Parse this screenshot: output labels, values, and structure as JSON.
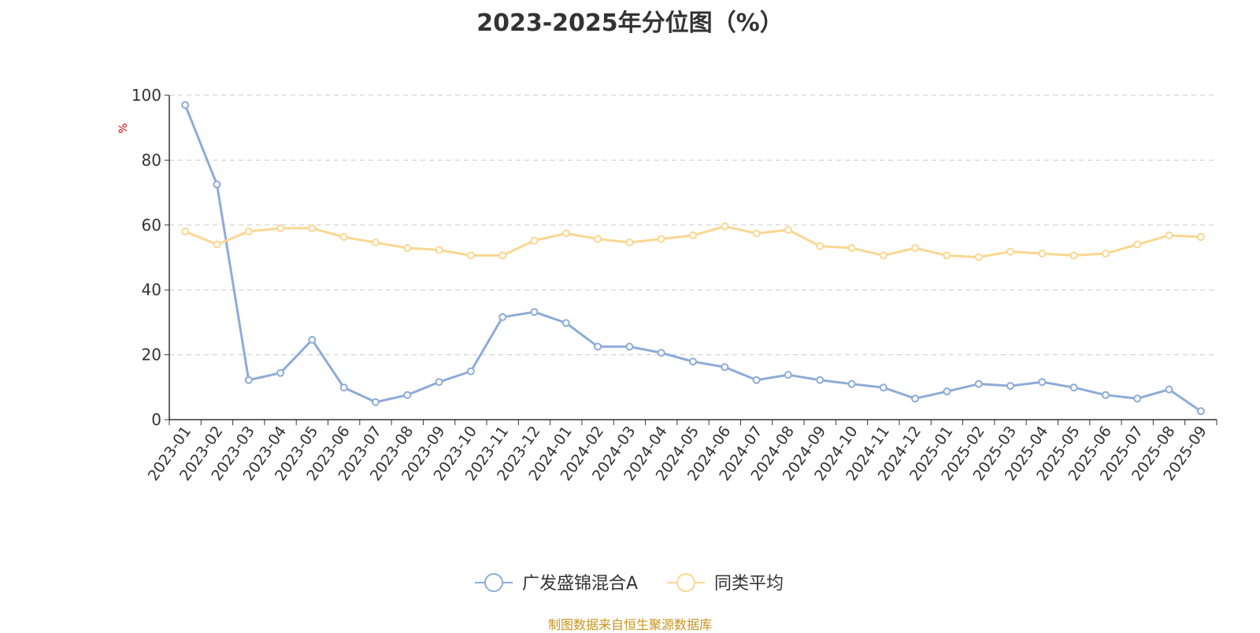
{
  "chart_data": {
    "type": "line",
    "title": "2023-2025年分位图（%）",
    "ylabel": "%",
    "xlabel": "",
    "ylim": [
      0,
      100
    ],
    "yticks": [
      0,
      20,
      40,
      60,
      80,
      100
    ],
    "grid": true,
    "legend_position": "bottom",
    "categories": [
      "2023-01",
      "2023-02",
      "2023-03",
      "2023-04",
      "2023-05",
      "2023-06",
      "2023-07",
      "2023-08",
      "2023-09",
      "2023-10",
      "2023-11",
      "2023-12",
      "2024-01",
      "2024-02",
      "2024-03",
      "2024-04",
      "2024-05",
      "2024-06",
      "2024-07",
      "2024-08",
      "2024-09",
      "2024-10",
      "2024-11",
      "2024-12",
      "2025-01",
      "2025-02",
      "2025-03",
      "2025-04",
      "2025-05",
      "2025-06",
      "2025-07",
      "2025-08",
      "2025-09"
    ],
    "series": [
      {
        "name": "广发盛锦混合A",
        "color": "#8eabd8",
        "values": [
          97.0,
          72.5,
          12.2,
          14.4,
          24.6,
          9.9,
          5.4,
          7.6,
          11.6,
          14.9,
          31.6,
          33.2,
          29.8,
          22.5,
          22.5,
          20.6,
          17.9,
          16.2,
          12.2,
          13.8,
          12.2,
          11.0,
          9.9,
          6.5,
          8.7,
          11.0,
          10.4,
          11.6,
          9.9,
          7.6,
          6.5,
          9.3,
          2.6
        ]
      },
      {
        "name": "同类平均",
        "color": "#fad791",
        "values": [
          58.0,
          54.0,
          58.0,
          59.0,
          59.0,
          56.3,
          54.6,
          52.9,
          52.3,
          50.6,
          50.6,
          55.2,
          57.4,
          55.7,
          54.6,
          55.7,
          56.8,
          59.6,
          57.4,
          58.5,
          53.5,
          52.9,
          50.6,
          52.9,
          50.6,
          50.1,
          51.8,
          51.2,
          50.6,
          51.2,
          54.0,
          56.8,
          56.3
        ]
      }
    ]
  },
  "footer": {
    "source_note": "制图数据来自恒生聚源数据库"
  }
}
